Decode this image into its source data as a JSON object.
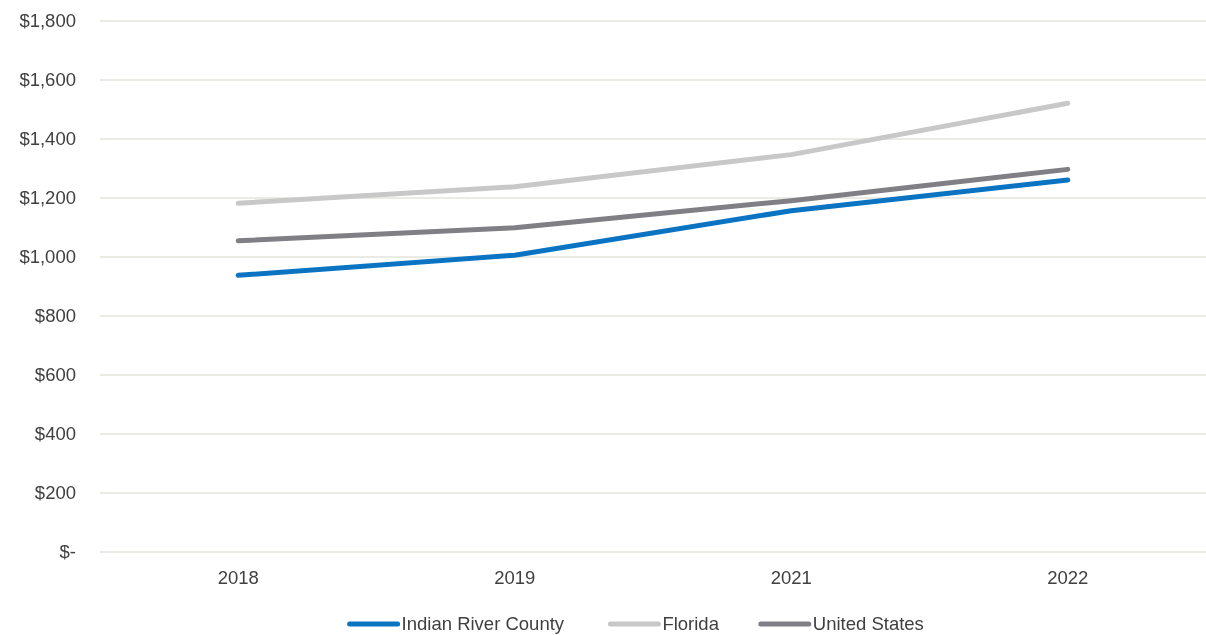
{
  "chart_data": {
    "type": "line",
    "categories": [
      "2018",
      "2019",
      "2021",
      "2022"
    ],
    "series": [
      {
        "name": "Indian River County",
        "color": "#0a74c2",
        "values": [
          938,
          1006,
          1157,
          1261
        ]
      },
      {
        "name": "Florida",
        "color": "#c8c8c8",
        "values": [
          1182,
          1238,
          1347,
          1521
        ]
      },
      {
        "name": "United States",
        "color": "#7f7f85",
        "values": [
          1055,
          1099,
          1191,
          1297
        ]
      }
    ],
    "ylim": [
      0,
      1800
    ],
    "yticks": [
      {
        "value": 0,
        "label": "$-"
      },
      {
        "value": 200,
        "label": "$200"
      },
      {
        "value": 400,
        "label": "$400"
      },
      {
        "value": 600,
        "label": "$600"
      },
      {
        "value": 800,
        "label": "$800"
      },
      {
        "value": 1000,
        "label": "$1,000"
      },
      {
        "value": 1200,
        "label": "$1,200"
      },
      {
        "value": 1400,
        "label": "$1,400"
      },
      {
        "value": 1600,
        "label": "$1,600"
      },
      {
        "value": 1800,
        "label": "$1,800"
      }
    ],
    "grid": "y",
    "legend": "bottom",
    "marker": "none",
    "line_style": "solid"
  }
}
